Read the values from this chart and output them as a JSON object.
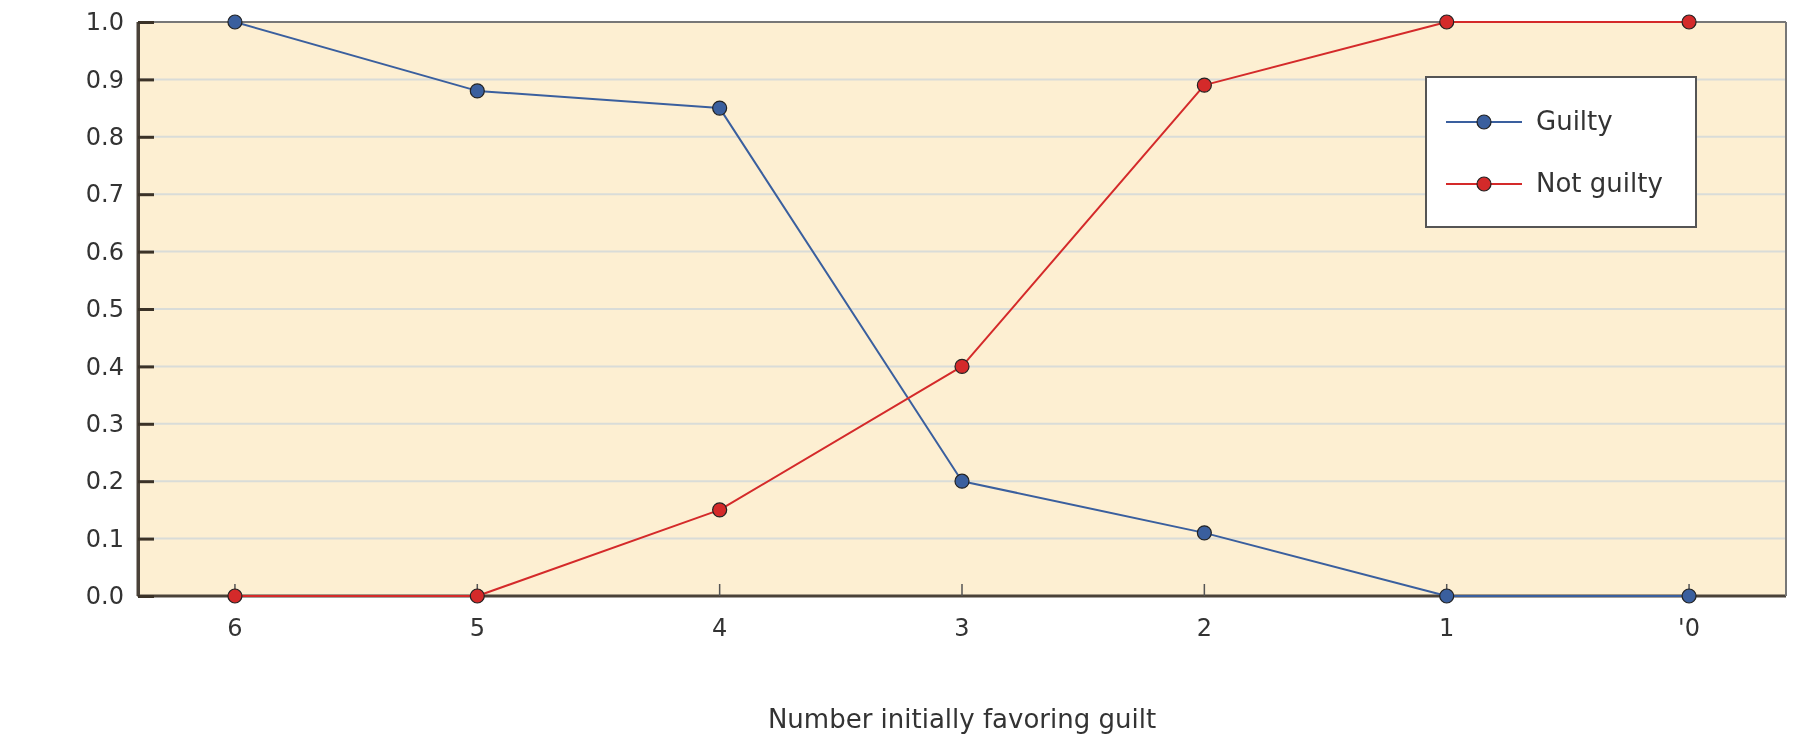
{
  "chart_data": {
    "type": "line",
    "xlabel": "Number initially favoring guilt",
    "categories": [
      "6",
      "5",
      "4",
      "3",
      "2",
      "1",
      "'0"
    ],
    "series": [
      {
        "name": "Guilty",
        "color": "#3a5f9e",
        "values": [
          1.0,
          0.88,
          0.85,
          0.2,
          0.11,
          0,
          0
        ]
      },
      {
        "name": "Not guilty",
        "color": "#d42a2a",
        "values": [
          0,
          0,
          0.15,
          0.4,
          0.89,
          1.0,
          1.0
        ]
      }
    ],
    "ylim": [
      0,
      1
    ],
    "yticks": [
      {
        "value": 0,
        "label": "0.0"
      },
      0.1,
      0.2,
      0.3,
      0.4,
      0.5,
      0.6,
      0.7,
      0.8,
      0.9,
      {
        "value": 1,
        "label": "1.0"
      }
    ],
    "grid": "y",
    "legend": "top right",
    "marker": "circle",
    "line_style": "solid"
  }
}
